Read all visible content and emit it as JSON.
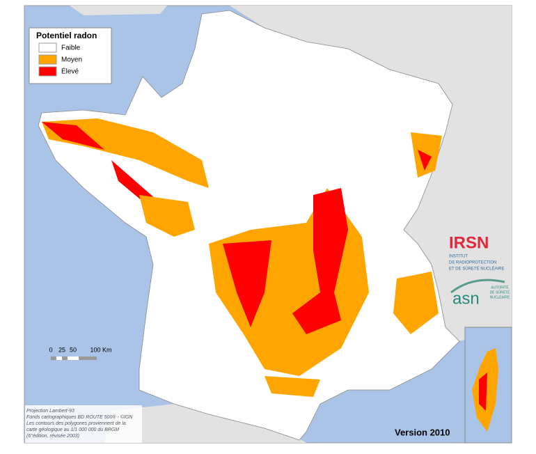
{
  "legend": {
    "title": "Potentiel radon",
    "items": [
      {
        "label": "Faible",
        "color": "#ffffff"
      },
      {
        "label": "Moyen",
        "color": "#ffa500"
      },
      {
        "label": "Élevé",
        "color": "#ff0000"
      }
    ]
  },
  "scale_bar": {
    "labels": [
      "0",
      "25",
      "50",
      "100 Km"
    ]
  },
  "logos": {
    "irsn": {
      "name": "IRSN",
      "lines": [
        "INSTITUT",
        "DE RADIOPROTECTION",
        "ET DE SÛRETÉ NUCLÉAIRE"
      ]
    },
    "asn": {
      "name": "asn",
      "lines": [
        "AUTORITÉ",
        "DE SÛRETÉ",
        "NUCLÉAIRE"
      ]
    }
  },
  "credits": [
    "Projection Lambert-93",
    "Fonds cartographiques BD ROUTE 500® - ©IGN",
    "Les contours des polygones proviennent de la",
    "carte géologique au 1/1 000 000 du BRGM",
    "(6°édition, révisée 2003)"
  ],
  "version": "Version 2010"
}
